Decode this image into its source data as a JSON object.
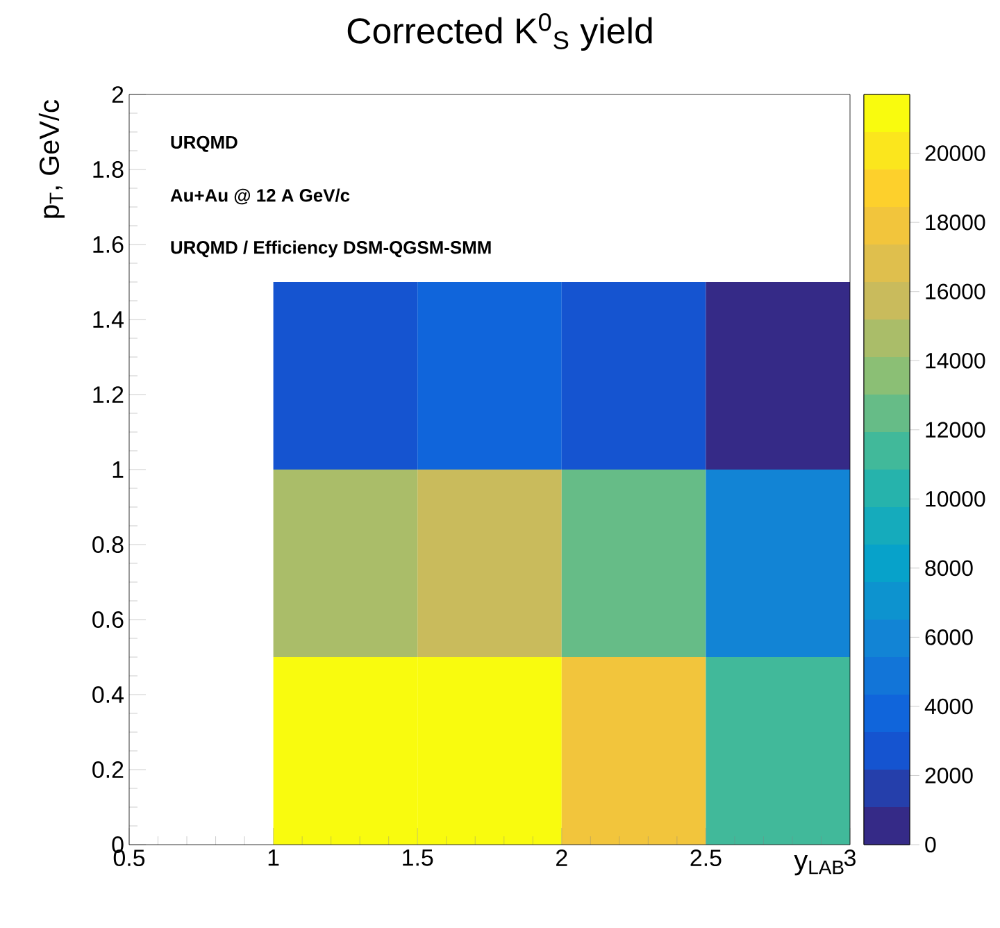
{
  "chart_data": {
    "type": "heatmap",
    "title": "Corrected K$^{0}$$_{S}$ yield",
    "xlabel": "y$_{LAB}$",
    "ylabel": "p$_{T}$, GeV/c",
    "annotations": [
      "URQMD",
      "Au+Au @ 12 A GeV/c",
      "URQMD / Efficiency DSM-QGSM-SMM"
    ],
    "x": [
      1.25,
      1.75,
      2.25,
      2.75
    ],
    "y": [
      1.25,
      0.75,
      0.25
    ],
    "cells": [
      [
        3000,
        3500,
        3000,
        500
      ],
      [
        14500,
        16000,
        13000,
        6500
      ],
      [
        21500,
        21500,
        18000,
        11000
      ]
    ],
    "clim": [
      0,
      21700
    ],
    "cticks": [
      0,
      2000,
      4000,
      6000,
      8000,
      10000,
      12000,
      14000,
      16000,
      18000,
      20000
    ],
    "xlim": [
      0.5,
      3
    ],
    "xticks": [
      0.5,
      1,
      1.5,
      2,
      2.5,
      3
    ],
    "ylim": [
      0,
      2
    ],
    "yticks": [
      0,
      0.2,
      0.4,
      0.6,
      0.8,
      1,
      1.2,
      1.4,
      1.6,
      1.8,
      2
    ]
  }
}
